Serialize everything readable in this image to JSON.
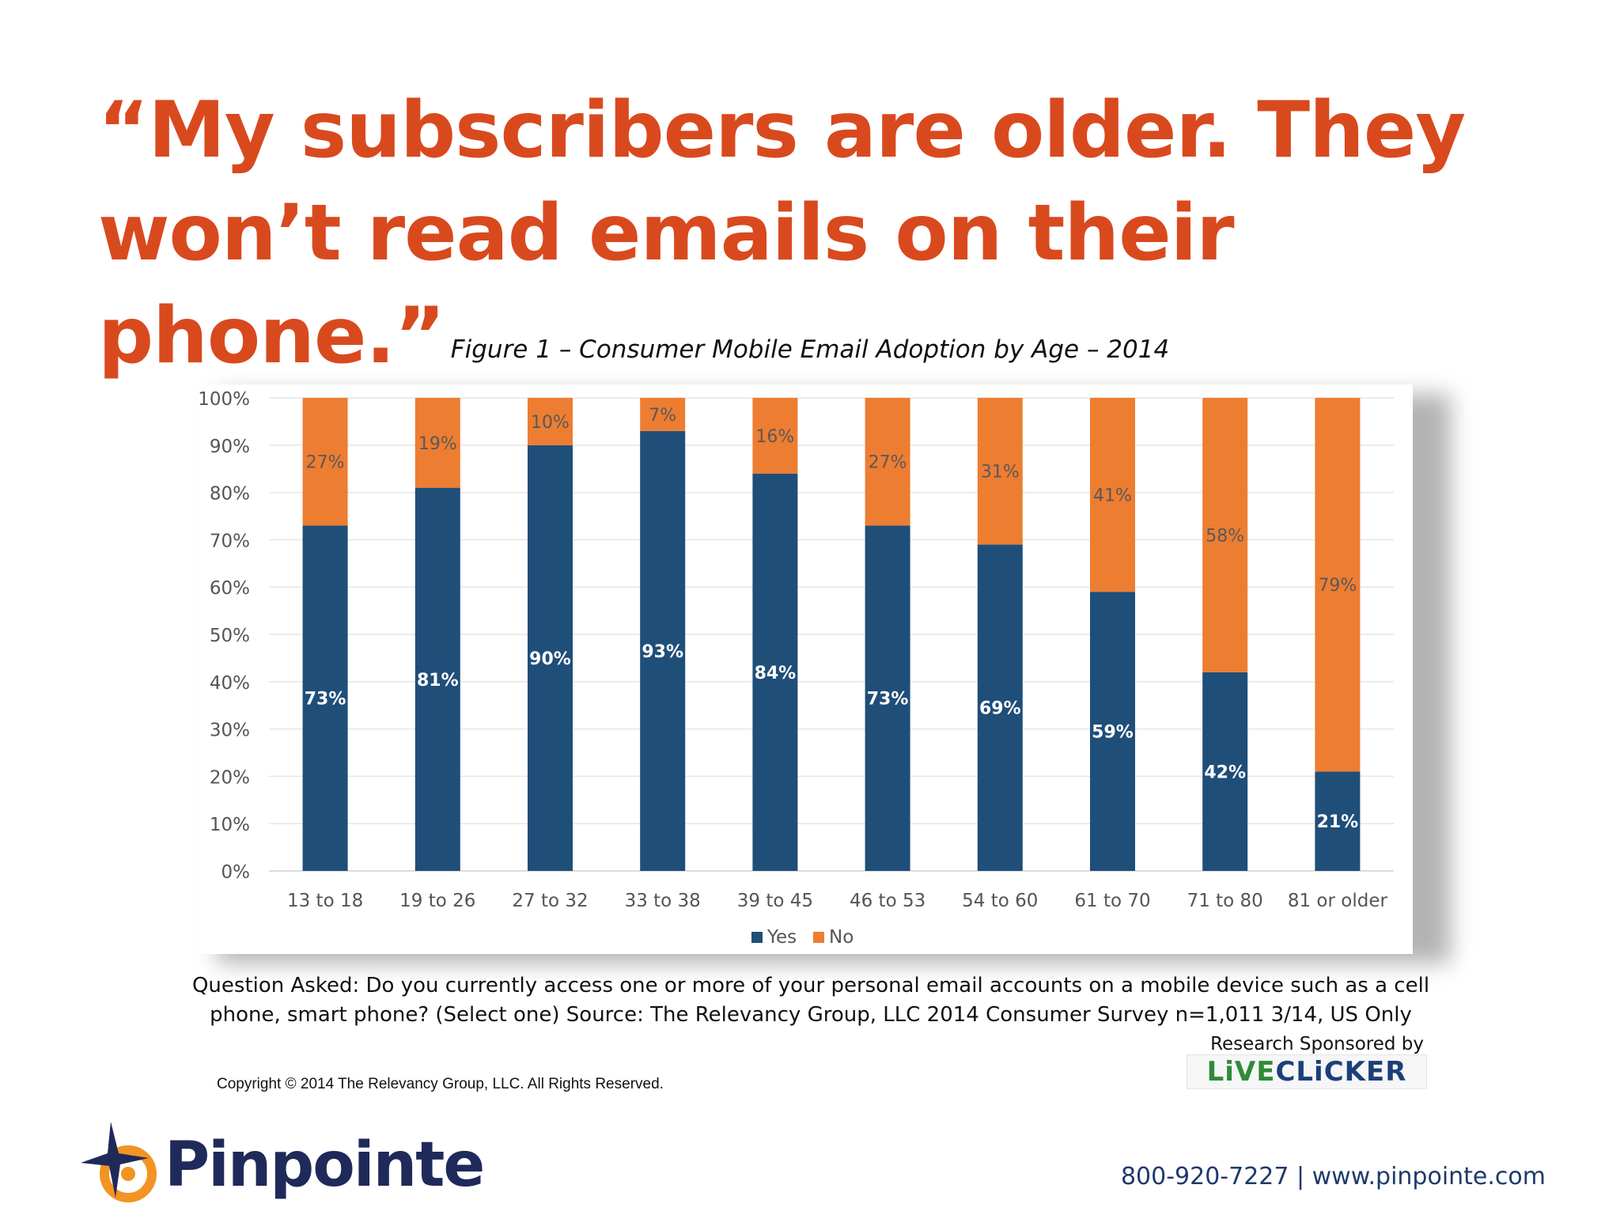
{
  "headline": "“My subscribers are older. They won’t read emails on their phone.”",
  "figure_caption": "Figure 1 – Consumer Mobile Email Adoption by Age – 2014",
  "chart_data": {
    "type": "bar",
    "stacked": true,
    "categories": [
      "13 to 18",
      "19 to 26",
      "27 to 32",
      "33 to 38",
      "39 to 45",
      "46 to 53",
      "54 to 60",
      "61 to 70",
      "71 to 80",
      "81 or older"
    ],
    "series": [
      {
        "name": "Yes",
        "color": "#1f4e79",
        "values": [
          73,
          81,
          90,
          93,
          84,
          73,
          69,
          59,
          42,
          21
        ],
        "labels": [
          "73%",
          "81%",
          "90%",
          "93%",
          "84%",
          "73%",
          "69%",
          "59%",
          "42%",
          "21%"
        ]
      },
      {
        "name": "No",
        "color": "#ed7d31",
        "values": [
          27,
          19,
          10,
          7,
          16,
          27,
          31,
          41,
          58,
          79
        ],
        "labels": [
          "27%",
          "19%",
          "10%",
          "7%",
          "16%",
          "27%",
          "31%",
          "41%",
          "58%",
          "79%"
        ]
      }
    ],
    "ylim": [
      0,
      100
    ],
    "yticks": [
      0,
      10,
      20,
      30,
      40,
      50,
      60,
      70,
      80,
      90,
      100
    ],
    "ytick_labels": [
      "0%",
      "10%",
      "20%",
      "30%",
      "40%",
      "50%",
      "60%",
      "70%",
      "80%",
      "90%",
      "100%"
    ],
    "grid": true,
    "legend_position": "bottom"
  },
  "question": "Question Asked: Do you currently access one or more of your personal email accounts on a mobile device such as a cell phone, smart phone? (Select one) Source: The Relevancy Group, LLC 2014 Consumer Survey n=1,011 3/14, US Only",
  "sponsor": {
    "label": "Research Sponsored by",
    "logo_live": "LiVE",
    "logo_clicker": "CLiCKER"
  },
  "copyright": "Copyright © 2014 The Relevancy Group, LLC. All Rights Reserved.",
  "brand": {
    "name": "Pinpointe",
    "icon": "pinpointe-star-target-icon",
    "colors": {
      "orange": "#f39323",
      "navy": "#1f2a5a"
    }
  },
  "contact": "800-920-7227 | www.pinpointe.com"
}
